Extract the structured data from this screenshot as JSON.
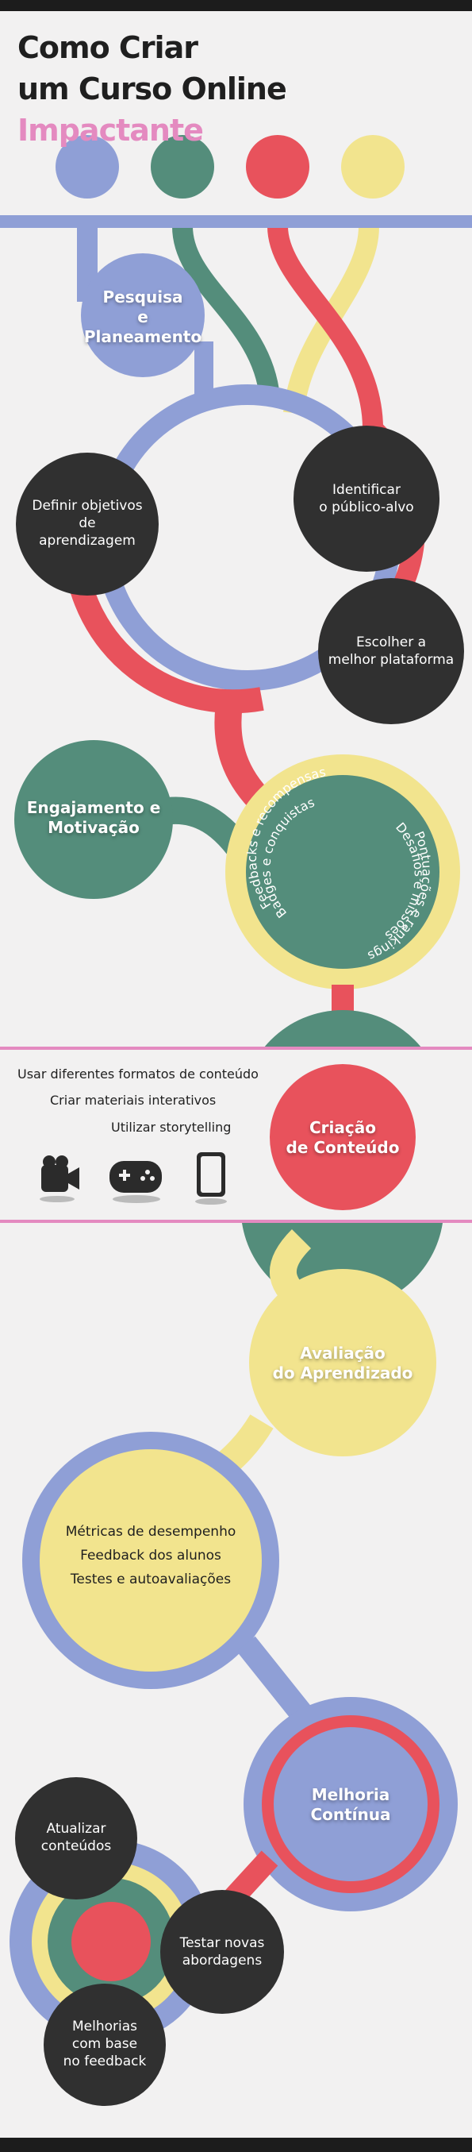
{
  "title": {
    "line1": "Como Criar",
    "line2": "um Curso Online",
    "accent": "Impactante"
  },
  "colors": {
    "blue": "#8f9fd6",
    "green": "#548d7b",
    "red": "#e8525c",
    "yellow": "#f2e48e",
    "dark": "#303030",
    "pink": "#e48ac0",
    "bg": "#f2f1f1"
  },
  "stage1": {
    "title": "Pesquisa\ne\nPlaneamento",
    "items": [
      "Definir objetivos\nde\naprendizagem",
      "Identificar\no público-alvo",
      "Escolher a\nmelhor plataforma"
    ]
  },
  "stage2": {
    "title": "Engajamento e\nMotivação",
    "arc1": "Feedbacks e recompensas",
    "arc2": "Badges e conquistas",
    "arc3": "Desafios e missões",
    "arc4": "Pontuações e rankings"
  },
  "stage3": {
    "title": "Criação\nde Conteúdo",
    "items": [
      "Usar diferentes formatos de conteúdo",
      "Criar materiais interativos",
      "Utilizar storytelling"
    ],
    "icons": [
      "video-camera-icon",
      "gamepad-icon",
      "tablet-icon"
    ]
  },
  "stage4": {
    "title": "Avaliação\ndo Aprendizado",
    "items": [
      "Métricas de desempenho",
      "Feedback dos alunos",
      "Testes e autoavaliações"
    ]
  },
  "stage5": {
    "title": "Melhoria\nContínua",
    "items": [
      "Atualizar\nconteúdos",
      "Testar novas\nabordagens",
      "Melhorias\ncom base\nno feedback"
    ]
  }
}
